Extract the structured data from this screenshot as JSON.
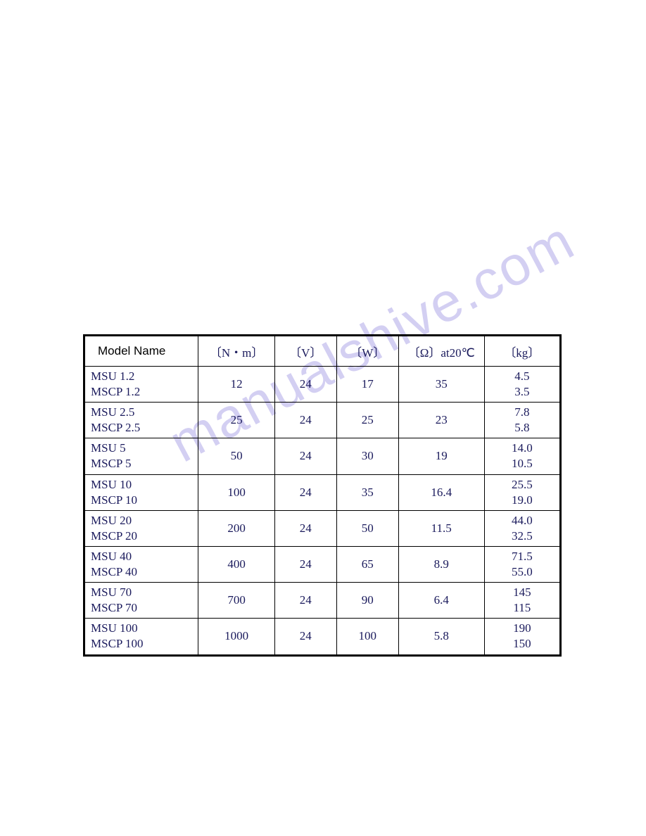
{
  "watermark": "manualshive.com",
  "table": {
    "headers": {
      "model": "Model Name",
      "nm": "〔N・m〕",
      "v": "〔V〕",
      "w": "〔W〕",
      "ohm": "〔Ω〕at20℃",
      "kg": "〔kg〕"
    },
    "rows": [
      {
        "model_line1": "MSU 1.2",
        "model_line2": "MSCP 1.2",
        "nm": "12",
        "v": "24",
        "w": "17",
        "ohm": "35",
        "kg_line1": "4.5",
        "kg_line2": "3.5"
      },
      {
        "model_line1": "MSU 2.5",
        "model_line2": "MSCP 2.5",
        "nm": "25",
        "v": "24",
        "w": "25",
        "ohm": "23",
        "kg_line1": "7.8",
        "kg_line2": "5.8"
      },
      {
        "model_line1": "MSU 5",
        "model_line2": "MSCP 5",
        "nm": "50",
        "v": "24",
        "w": "30",
        "ohm": "19",
        "kg_line1": "14.0",
        "kg_line2": "10.5"
      },
      {
        "model_line1": "MSU 10",
        "model_line2": "MSCP 10",
        "nm": "100",
        "v": "24",
        "w": "35",
        "ohm": "16.4",
        "kg_line1": "25.5",
        "kg_line2": "19.0"
      },
      {
        "model_line1": "MSU 20",
        "model_line2": "MSCP 20",
        "nm": "200",
        "v": "24",
        "w": "50",
        "ohm": "11.5",
        "kg_line1": "44.0",
        "kg_line2": "32.5"
      },
      {
        "model_line1": "MSU 40",
        "model_line2": "MSCP 40",
        "nm": "400",
        "v": "24",
        "w": "65",
        "ohm": "8.9",
        "kg_line1": "71.5",
        "kg_line2": "55.0"
      },
      {
        "model_line1": "MSU 70",
        "model_line2": "MSCP 70",
        "nm": "700",
        "v": "24",
        "w": "90",
        "ohm": "6.4",
        "kg_line1": "145",
        "kg_line2": "115"
      },
      {
        "model_line1": "MSU 100",
        "model_line2": "MSCP 100",
        "nm": "1000",
        "v": "24",
        "w": "100",
        "ohm": "5.8",
        "kg_line1": "190",
        "kg_line2": "150"
      }
    ]
  }
}
